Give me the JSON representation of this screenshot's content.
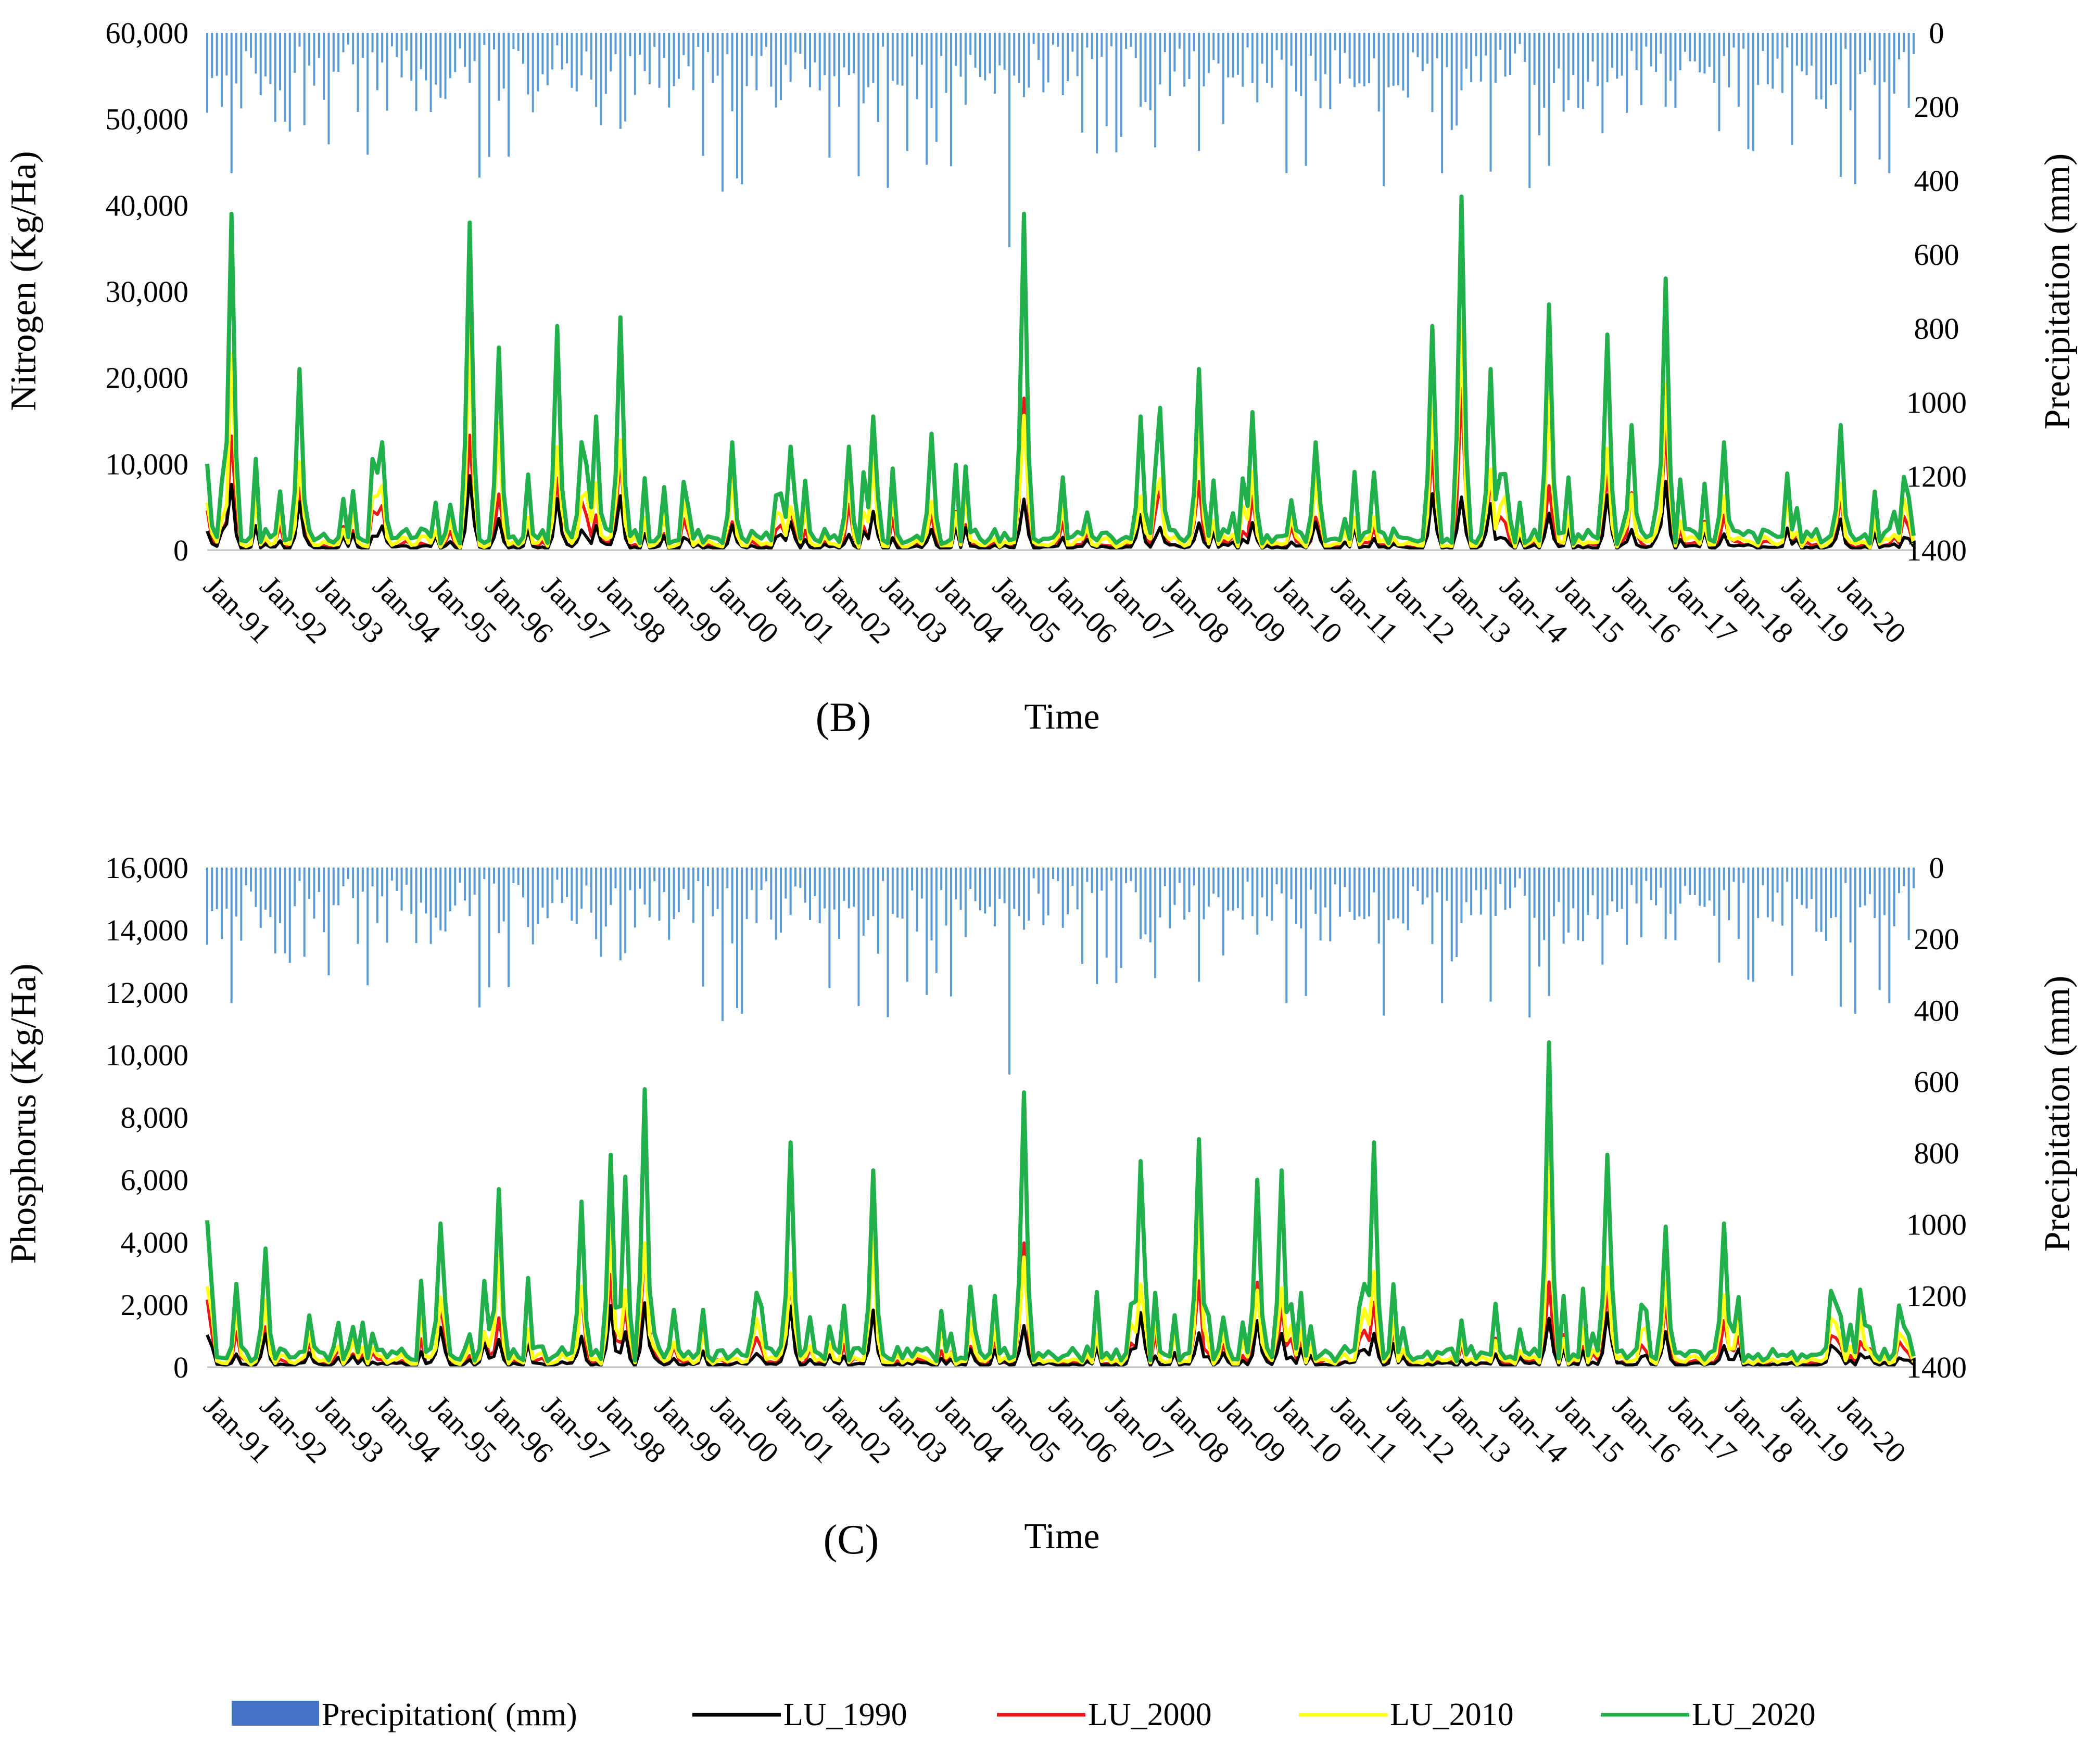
{
  "legend": {
    "items": [
      {
        "label": "Precipitation( (mm)",
        "color": "#4472c4",
        "kind": "bar"
      },
      {
        "label": "LU_1990",
        "color": "#000000",
        "kind": "line"
      },
      {
        "label": "LU_2000",
        "color": "#e8191c",
        "kind": "line"
      },
      {
        "label": "LU_2010",
        "color": "#ffff1a",
        "kind": "line"
      },
      {
        "label": "LU_2020",
        "color": "#21b04c",
        "kind": "line"
      }
    ]
  },
  "chart_data": [
    {
      "type": "line",
      "panel_label": "(B)",
      "xlabel": "Time",
      "ylabel": "Nitrogen (Kg/Ha)",
      "y2label": "Precipitation (mm)",
      "ylim": [
        0,
        60000
      ],
      "y2lim": [
        0,
        1400
      ],
      "y2_inverted": true,
      "yticks": [
        "0",
        "10,000",
        "20,000",
        "30,000",
        "40,000",
        "50,000",
        "60,000"
      ],
      "y2ticks": [
        "0",
        "200",
        "400",
        "600",
        "800",
        "1000",
        "1200",
        "1400"
      ],
      "categories": [
        "Jan-91",
        "Jan-92",
        "Jan-93",
        "Jan-94",
        "Jan-95",
        "Jan-96",
        "Jan-97",
        "Jan-98",
        "Jan-99",
        "Jan-00",
        "Jan-01",
        "Jan-02",
        "Jan-03",
        "Jan-04",
        "Jan-05",
        "Jan-06",
        "Jan-07",
        "Jan-08",
        "Jan-09",
        "Jan-10",
        "Jan-11",
        "Jan-12",
        "Jan-13",
        "Jan-14",
        "Jan-15",
        "Jan-16",
        "Jan-17",
        "Jan-18",
        "Jan-19",
        "Jan-20"
      ],
      "peaks_LU_2020": [
        {
          "date": "Jan-91",
          "value": 10000
        },
        {
          "date": "Jun-91",
          "value": 39000
        },
        {
          "date": "Aug-92",
          "value": 21000
        },
        {
          "date": "Jan-94",
          "value": 12500
        },
        {
          "date": "Jul-95",
          "value": 38000
        },
        {
          "date": "Jan-96",
          "value": 23500
        },
        {
          "date": "Jan-97",
          "value": 26000
        },
        {
          "date": "Jun-97",
          "value": 12500
        },
        {
          "date": "Sep-97",
          "value": 15500
        },
        {
          "date": "Feb-98",
          "value": 27000
        },
        {
          "date": "Jan-00",
          "value": 12500
        },
        {
          "date": "Jan-01",
          "value": 12000
        },
        {
          "date": "Jan-02",
          "value": 12000
        },
        {
          "date": "Jun-02",
          "value": 15500
        },
        {
          "date": "Jun-03",
          "value": 13500
        },
        {
          "date": "Jan-05",
          "value": 39000
        },
        {
          "date": "Jan-07",
          "value": 15500
        },
        {
          "date": "May-07",
          "value": 16500
        },
        {
          "date": "Jan-08",
          "value": 21000
        },
        {
          "date": "Dec-08",
          "value": 16000
        },
        {
          "date": "Jan-10",
          "value": 12500
        },
        {
          "date": "Jan-12",
          "value": 26000
        },
        {
          "date": "Jul-12",
          "value": 41000
        },
        {
          "date": "Jan-13",
          "value": 21000
        },
        {
          "date": "Jan-14",
          "value": 28500
        },
        {
          "date": "Jan-15",
          "value": 25000
        },
        {
          "date": "Jun-15",
          "value": 14500
        },
        {
          "date": "Jan-16",
          "value": 31500
        },
        {
          "date": "Jan-17",
          "value": 12500
        },
        {
          "date": "Jan-19",
          "value": 14500
        }
      ]
    },
    {
      "type": "line",
      "panel_label": "(C)",
      "xlabel": "Time",
      "ylabel": "Phosphorus (Kg/Ha)",
      "y2label": "Precipitation (mm)",
      "ylim": [
        0,
        16000
      ],
      "y2lim": [
        0,
        1400
      ],
      "y2_inverted": true,
      "yticks": [
        "0",
        "2,000",
        "4,000",
        "6,000",
        "8,000",
        "10,000",
        "12,000",
        "14,000",
        "16,000"
      ],
      "y2ticks": [
        "0",
        "200",
        "400",
        "600",
        "800",
        "1000",
        "1200",
        "1400"
      ],
      "categories": [
        "Jan-91",
        "Jan-92",
        "Jan-93",
        "Jan-94",
        "Jan-95",
        "Jan-96",
        "Jan-97",
        "Jan-98",
        "Jan-99",
        "Jan-00",
        "Jan-01",
        "Jan-02",
        "Jan-03",
        "Jan-04",
        "Jan-05",
        "Jan-06",
        "Jan-07",
        "Jan-08",
        "Jan-09",
        "Jan-10",
        "Jan-11",
        "Jan-12",
        "Jan-13",
        "Jan-14",
        "Jan-15",
        "Jan-16",
        "Jan-17",
        "Jan-18",
        "Jan-19",
        "Jan-20"
      ],
      "peaks_LU_2020": [
        {
          "date": "Jan-91",
          "value": 4700
        },
        {
          "date": "Jan-92",
          "value": 3800
        },
        {
          "date": "Jan-95",
          "value": 4600
        },
        {
          "date": "Jan-96",
          "value": 5700
        },
        {
          "date": "Jun-97",
          "value": 5300
        },
        {
          "date": "Dec-97",
          "value": 6800
        },
        {
          "date": "Mar-98",
          "value": 6100
        },
        {
          "date": "Jul-98",
          "value": 8900
        },
        {
          "date": "Jan-01",
          "value": 7200
        },
        {
          "date": "Jun-02",
          "value": 6300
        },
        {
          "date": "Jan-05",
          "value": 8800
        },
        {
          "date": "Jan-07",
          "value": 6600
        },
        {
          "date": "Jan-08",
          "value": 7300
        },
        {
          "date": "Jan-09",
          "value": 6000
        },
        {
          "date": "Jun-09",
          "value": 6300
        },
        {
          "date": "Jan-11",
          "value": 7200
        },
        {
          "date": "Jan-14",
          "value": 10400
        },
        {
          "date": "Jan-15",
          "value": 6800
        },
        {
          "date": "Jan-16",
          "value": 4500
        },
        {
          "date": "Jan-17",
          "value": 4600
        }
      ]
    }
  ]
}
